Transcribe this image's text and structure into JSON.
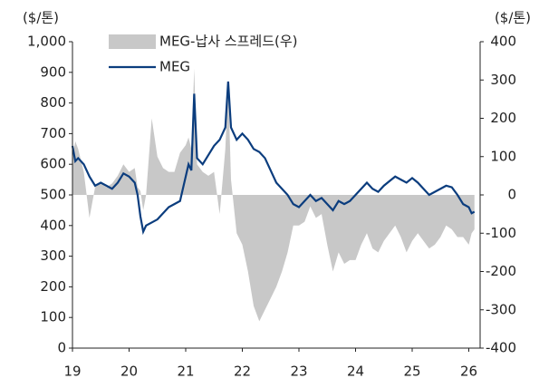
{
  "chart_data": {
    "type": "line",
    "y_label": "($/톤)",
    "y2_label": "($/톤)",
    "x": [
      19,
      19.05,
      19.1,
      19.2,
      19.3,
      19.4,
      19.5,
      19.6,
      19.7,
      19.8,
      19.9,
      20,
      20.1,
      20.15,
      20.2,
      20.25,
      20.3,
      20.4,
      20.5,
      20.6,
      20.7,
      20.8,
      20.9,
      21,
      21.05,
      21.1,
      21.15,
      21.2,
      21.3,
      21.4,
      21.5,
      21.6,
      21.7,
      21.75,
      21.8,
      21.9,
      22,
      22.1,
      22.2,
      22.3,
      22.4,
      22.5,
      22.6,
      22.7,
      22.8,
      22.9,
      23,
      23.1,
      23.2,
      23.3,
      23.4,
      23.5,
      23.6,
      23.7,
      23.8,
      23.9,
      24,
      24.1,
      24.2,
      24.3,
      24.4,
      24.5,
      24.6,
      24.7,
      24.8,
      24.9,
      25,
      25.1,
      25.2,
      25.3,
      25.4,
      25.5,
      25.6,
      25.7,
      25.8,
      25.9,
      26,
      26.05,
      26.1
    ],
    "series": [
      {
        "name": "MEG-납사 스프레드(우)",
        "color": "#c8c8c8",
        "axis": "y2",
        "style": "area",
        "values": [
          100,
          140,
          120,
          60,
          -60,
          20,
          30,
          20,
          30,
          50,
          80,
          60,
          70,
          20,
          10,
          -40,
          0,
          200,
          100,
          70,
          60,
          60,
          110,
          130,
          150,
          120,
          330,
          80,
          60,
          50,
          60,
          -50,
          120,
          290,
          40,
          -100,
          -130,
          -200,
          -290,
          -330,
          -300,
          -270,
          -240,
          -200,
          -150,
          -80,
          -80,
          -70,
          -30,
          -60,
          -50,
          -130,
          -200,
          -150,
          -180,
          -170,
          -170,
          -130,
          -100,
          -140,
          -150,
          -120,
          -100,
          -80,
          -110,
          -150,
          -120,
          -100,
          -120,
          -140,
          -130,
          -110,
          -80,
          -90,
          -110,
          -110,
          -130,
          -100,
          -90
        ]
      },
      {
        "name": "MEG",
        "color": "#0b3d7e",
        "axis": "y",
        "style": "line",
        "values": [
          660,
          610,
          620,
          600,
          560,
          530,
          540,
          530,
          520,
          540,
          570,
          560,
          540,
          500,
          430,
          380,
          400,
          410,
          420,
          440,
          460,
          470,
          480,
          560,
          600,
          580,
          830,
          620,
          600,
          630,
          660,
          680,
          720,
          870,
          720,
          680,
          700,
          680,
          650,
          640,
          620,
          580,
          540,
          520,
          500,
          470,
          460,
          480,
          500,
          480,
          490,
          470,
          450,
          480,
          470,
          480,
          500,
          520,
          540,
          520,
          510,
          530,
          545,
          560,
          550,
          540,
          555,
          540,
          520,
          500,
          510,
          520,
          530,
          525,
          500,
          470,
          460,
          440,
          445
        ]
      }
    ],
    "xlim": [
      19,
      26.2
    ],
    "xticks": [
      19,
      20,
      21,
      22,
      23,
      24,
      25,
      26
    ],
    "ylim": [
      0,
      1000
    ],
    "yticks": [
      0,
      100,
      200,
      300,
      400,
      500,
      600,
      700,
      800,
      900,
      {
        "value": 1000,
        "label": "1,000"
      }
    ],
    "y2lim": [
      -400,
      400
    ],
    "y2ticks": [
      -400,
      -300,
      -200,
      -100,
      0,
      100,
      200,
      300,
      400
    ],
    "grid": false
  }
}
